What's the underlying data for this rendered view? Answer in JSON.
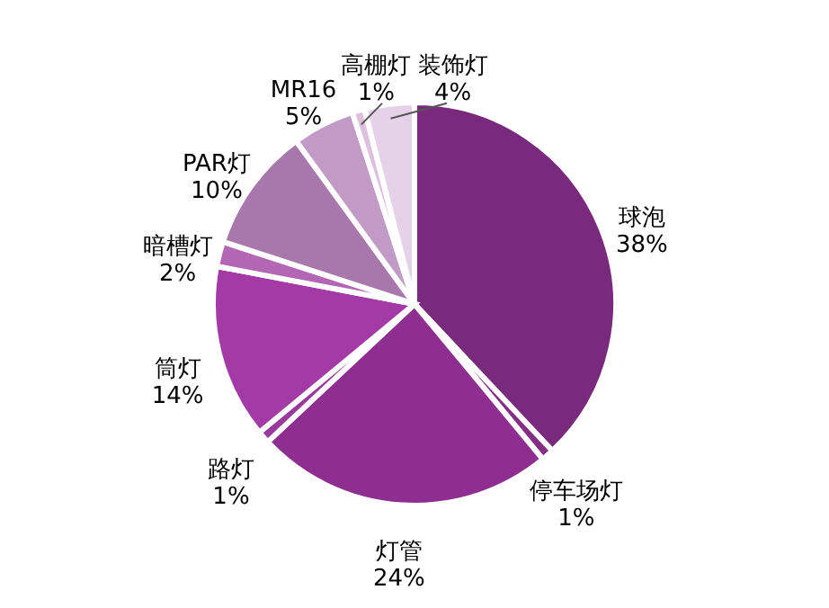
{
  "chart_data": {
    "type": "pie",
    "categories": [
      "球泡",
      "停车场灯",
      "灯管",
      "路灯",
      "筒灯",
      "暗槽灯",
      "PAR灯",
      "MR16",
      "高棚灯",
      "装饰灯"
    ],
    "values": [
      38,
      1,
      24,
      1,
      14,
      2,
      10,
      5,
      1,
      4
    ],
    "value_labels": [
      "38%",
      "1%",
      "24%",
      "1%",
      "14%",
      "2%",
      "10%",
      "5%",
      "1%",
      "4%"
    ],
    "colors": [
      "#7a2a7c",
      "#842e86",
      "#8e2e90",
      "#9a3a9c",
      "#a33aa6",
      "#b266b4",
      "#a878ac",
      "#c29ac6",
      "#dcc0de",
      "#e6d2e8"
    ],
    "legend": false
  }
}
